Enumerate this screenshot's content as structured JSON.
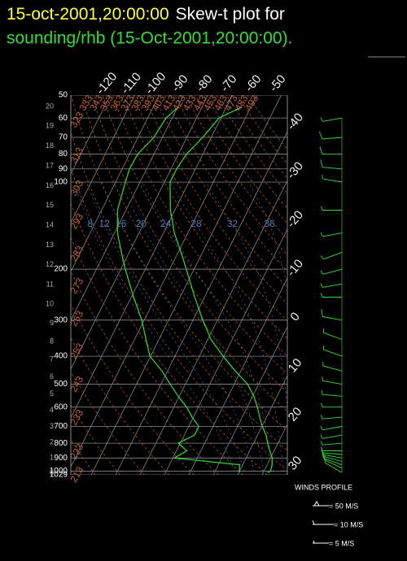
{
  "chart_data": {
    "type": "skew-t",
    "title_time": "15-oct-2001,20:00:00",
    "title": "Skew-t plot for",
    "subtitle": "sounding/rhb (15-Oct-2001,20:00:00).",
    "ylim": [
      50,
      1029
    ],
    "yticks": [
      50,
      60,
      70,
      80,
      90,
      100,
      200,
      300,
      400,
      500,
      600,
      700,
      800,
      900,
      1000,
      1029
    ],
    "log_y": true,
    "xticks": [
      -120,
      -110,
      -100,
      -90,
      -80,
      -70,
      -60,
      -50,
      -40,
      -30,
      -20,
      -10,
      0,
      10,
      20,
      30
    ],
    "height_ticks": [
      20,
      19,
      18,
      17,
      16,
      15,
      14,
      13,
      12,
      11,
      10,
      9,
      8,
      7,
      6,
      5,
      4,
      3,
      2,
      1,
      0
    ],
    "dry_adiabats": [
      213,
      223,
      233,
      243,
      253,
      263,
      273,
      283,
      293,
      303,
      313,
      323,
      333,
      343,
      353,
      363,
      373,
      383,
      393,
      403,
      413,
      423,
      433,
      443,
      453,
      463,
      473,
      483,
      493
    ],
    "dry_adiabat_color": "#b05020",
    "moist_adiabats": [
      8,
      12,
      16,
      20,
      24,
      28,
      32,
      36
    ],
    "moist_adiabat_color": "#4466aa",
    "pressure": [
      1010,
      1000,
      950,
      900,
      850,
      800,
      750,
      700,
      650,
      600,
      550,
      500,
      450,
      400,
      350,
      300,
      250,
      200,
      175,
      150,
      125,
      100,
      90,
      80,
      70,
      60,
      55
    ],
    "series": [
      {
        "color": "#33dd33",
        "values": [
          21.8,
          22.7,
          22,
          20.7,
          18.2,
          15.8,
          13.5,
          10.2,
          7.2,
          4.2,
          0.5,
          -4.5,
          -12.3,
          -20.3,
          -28.7,
          -36,
          -44,
          -53.2,
          -58.8,
          -65.5,
          -71.8,
          -77.7,
          -77.7,
          -76.7,
          -73.5,
          -70.8,
          -63.7
        ]
      },
      {
        "color": "#33dd33",
        "values": [
          10.2,
          10,
          8.7,
          -19.3,
          -15.8,
          -20.8,
          -15.8,
          -15.8,
          -20.5,
          -24.8,
          -30.5,
          -36.2,
          -42.3,
          -50.3,
          -55.3,
          -61,
          -69,
          -78.2,
          -83.2,
          -88.8,
          -93.5,
          -96,
          -97,
          -96.7,
          -93.5,
          -92.5,
          -89.7
        ]
      }
    ],
    "wind": {
      "title": "WINDS PROFILE",
      "color": "#33dd33",
      "pressure": [
        1010,
        975,
        950,
        925,
        900,
        875,
        850,
        800,
        750,
        700,
        650,
        600,
        550,
        500,
        450,
        400,
        350,
        300,
        250,
        225,
        200,
        175,
        150,
        125,
        100,
        90,
        80,
        70,
        60
      ],
      "speed": [
        7,
        8,
        9,
        8,
        6,
        5,
        5,
        6,
        7,
        6,
        5,
        5,
        6,
        7,
        8,
        8,
        9,
        10,
        9,
        8,
        6,
        5,
        6,
        7,
        9,
        10,
        11,
        12,
        8
      ],
      "direction": [
        300,
        295,
        290,
        285,
        280,
        275,
        270,
        265,
        260,
        260,
        265,
        270,
        275,
        280,
        285,
        290,
        290,
        280,
        270,
        260,
        255,
        250,
        260,
        270,
        280,
        275,
        270,
        265,
        260
      ],
      "legend": [
        "= 50 M/S",
        "= 10 M/S",
        "= 5 M/S"
      ]
    }
  }
}
